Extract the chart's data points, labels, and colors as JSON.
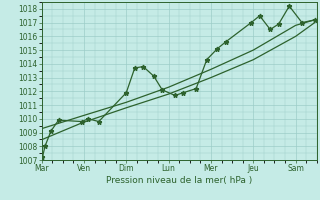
{
  "title": "",
  "xlabel": "Pression niveau de la mer( hPa )",
  "bg_color": "#c5ebe6",
  "grid_color": "#9dcdc8",
  "line_color": "#2d622d",
  "ylim": [
    1007,
    1018.5
  ],
  "yticks": [
    1007,
    1008,
    1009,
    1010,
    1011,
    1012,
    1013,
    1014,
    1015,
    1016,
    1017,
    1018
  ],
  "day_labels": [
    "Mar",
    "Ven",
    "Dim",
    "Lun",
    "Mer",
    "Jeu",
    "Sam"
  ],
  "day_positions": [
    0,
    1,
    2,
    3,
    4,
    5,
    6
  ],
  "xlim": [
    0,
    6.5
  ],
  "series1_x": [
    0.02,
    0.08,
    0.22,
    0.4,
    0.95,
    1.1,
    1.35,
    2.0,
    2.2,
    2.4,
    2.65,
    2.85,
    3.15,
    3.35,
    3.65,
    3.9,
    4.15,
    4.35,
    4.95,
    5.15,
    5.4,
    5.6,
    5.85,
    6.15,
    6.45
  ],
  "series1_y": [
    1007.2,
    1008.0,
    1009.1,
    1009.9,
    1009.8,
    1010.0,
    1009.8,
    1011.9,
    1013.7,
    1013.8,
    1013.1,
    1012.1,
    1011.7,
    1011.9,
    1012.2,
    1014.3,
    1015.1,
    1015.6,
    1017.0,
    1017.5,
    1016.5,
    1016.9,
    1018.2,
    1017.0,
    1017.2
  ],
  "series2_x": [
    0.02,
    0.95,
    2.0,
    3.0,
    4.0,
    5.0,
    6.0,
    6.45
  ],
  "series2_y": [
    1009.3,
    1010.2,
    1011.2,
    1012.3,
    1013.6,
    1015.0,
    1016.8,
    1017.2
  ],
  "series3_x": [
    0.02,
    0.95,
    2.0,
    3.0,
    4.0,
    5.0,
    6.0,
    6.45
  ],
  "series3_y": [
    1008.5,
    1009.7,
    1010.8,
    1011.8,
    1013.0,
    1014.3,
    1016.0,
    1017.0
  ],
  "marker_size": 3.5,
  "linewidth": 0.9,
  "tick_fontsize": 5.5,
  "xlabel_fontsize": 6.5
}
